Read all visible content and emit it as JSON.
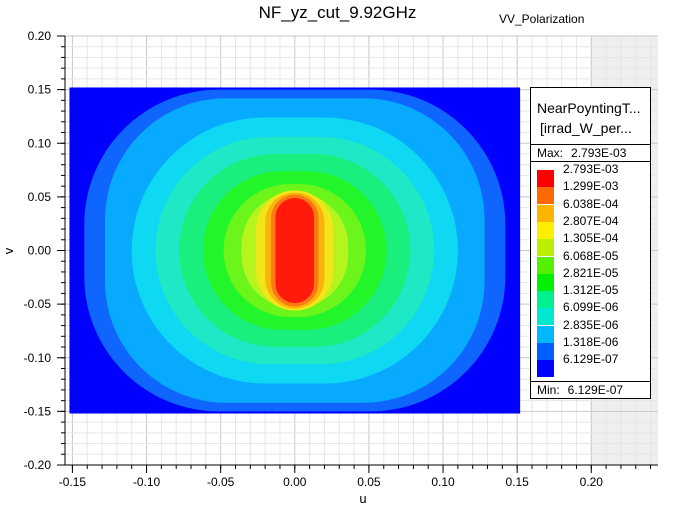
{
  "chart_data": {
    "type": "heatmap",
    "title": "NF_yz_cut_9.92GHz",
    "subtitle": "VV_Polarization",
    "xlabel": "u",
    "ylabel": "v",
    "xlim": [
      -0.155,
      0.245
    ],
    "ylim": [
      -0.2,
      0.2
    ],
    "x_ticks": [
      "-0.15",
      "-0.10",
      "-0.05",
      "0.00",
      "0.05",
      "0.10",
      "0.15",
      "0.20"
    ],
    "x_tick_values": [
      -0.15,
      -0.1,
      -0.05,
      0.0,
      0.05,
      0.1,
      0.15,
      0.2
    ],
    "y_ticks": [
      "0.20",
      "0.15",
      "0.10",
      "0.05",
      "0.00",
      "-0.05",
      "-0.10",
      "-0.15",
      "-0.20"
    ],
    "y_tick_values": [
      0.2,
      0.15,
      0.1,
      0.05,
      0.0,
      -0.05,
      -0.1,
      -0.15,
      -0.2
    ],
    "data_extent": {
      "u": [
        -0.152,
        0.152
      ],
      "v": [
        -0.152,
        0.152
      ]
    },
    "grid": true,
    "regions": [
      {
        "level": 0,
        "color": "#0000ff",
        "u_half": 0.152,
        "v_half": 0.152
      },
      {
        "level": 1,
        "color": "#0e66ff",
        "u_half": 0.142,
        "v_half": 0.15
      },
      {
        "level": 2,
        "color": "#08aaff",
        "u_half": 0.128,
        "v_half": 0.142
      },
      {
        "level": 3,
        "color": "#0fd8f2",
        "u_half": 0.11,
        "v_half": 0.124
      },
      {
        "level": 4,
        "color": "#1ee8c5",
        "u_half": 0.094,
        "v_half": 0.106
      },
      {
        "level": 5,
        "color": "#1aef7e",
        "u_half": 0.078,
        "v_half": 0.09
      },
      {
        "level": 6,
        "color": "#22f52a",
        "u_half": 0.062,
        "v_half": 0.074
      },
      {
        "level": 7,
        "color": "#6cf51a",
        "u_half": 0.048,
        "v_half": 0.062
      },
      {
        "level": 8,
        "color": "#b6f41e",
        "u_half": 0.036,
        "v_half": 0.054
      },
      {
        "level": 9,
        "color": "#f0e61a",
        "u_half": 0.026,
        "v_half": 0.056
      },
      {
        "level": 10,
        "color": "#fdb30e",
        "u_half": 0.02,
        "v_half": 0.054
      },
      {
        "level": 11,
        "color": "#f87a10",
        "u_half": 0.016,
        "v_half": 0.052
      },
      {
        "level": 12,
        "color": "#ff1a0c",
        "u_half": 0.013,
        "v_half": 0.049
      }
    ],
    "legend": {
      "title_line1": "NearPoyntingT...",
      "title_line2": "[irrad_W_per...",
      "max_label": "Max:",
      "max_value": "2.793E-03",
      "min_label": "Min:",
      "min_value": "6.129E-07",
      "placement": "right",
      "levels": [
        {
          "label": "2.793E-03",
          "color": "#ff0000"
        },
        {
          "label": "1.299E-03",
          "color": "#ff6a00"
        },
        {
          "label": "6.038E-04",
          "color": "#ffb400"
        },
        {
          "label": "2.807E-04",
          "color": "#ffee00"
        },
        {
          "label": "1.305E-04",
          "color": "#b8f000"
        },
        {
          "label": "6.068E-05",
          "color": "#55f000"
        },
        {
          "label": "2.821E-05",
          "color": "#00f000"
        },
        {
          "label": "1.312E-05",
          "color": "#00f090"
        },
        {
          "label": "6.099E-06",
          "color": "#00e8d0"
        },
        {
          "label": "2.835E-06",
          "color": "#00b8ff"
        },
        {
          "label": "1.318E-06",
          "color": "#0060ff"
        },
        {
          "label": "6.129E-07",
          "color": "#0000ff"
        }
      ]
    }
  }
}
